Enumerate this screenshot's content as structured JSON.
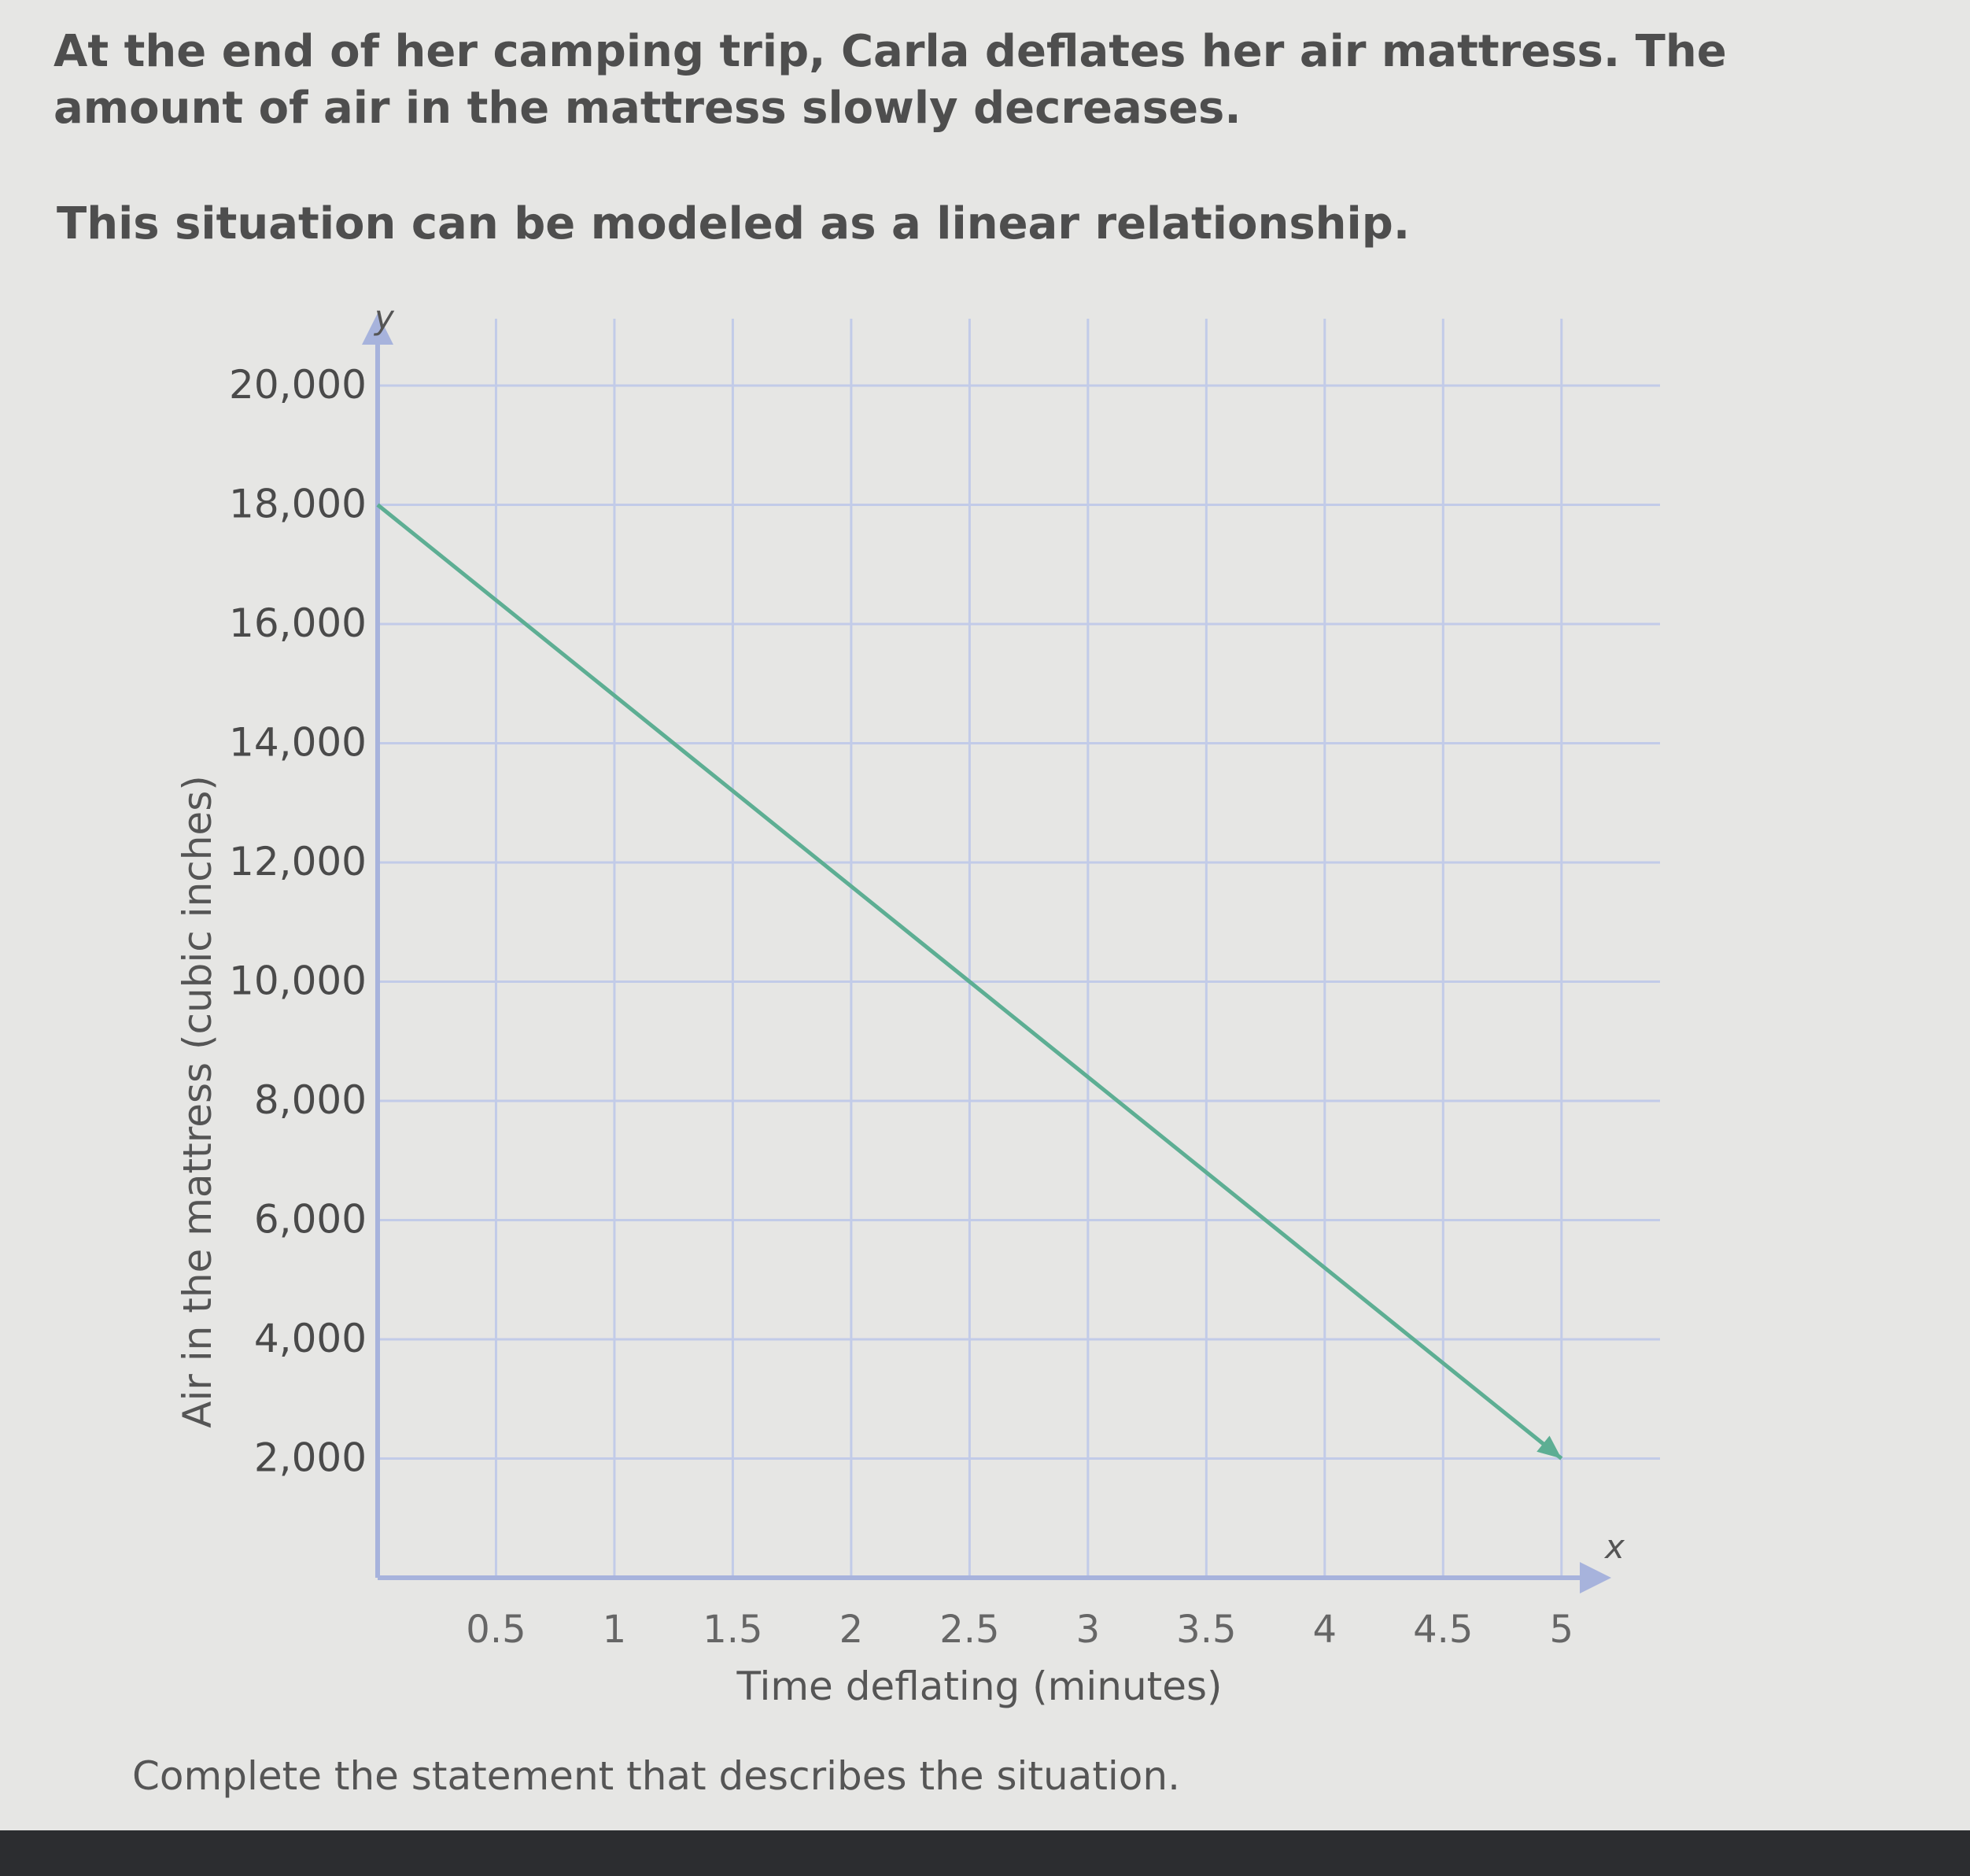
{
  "problem": {
    "text": "At the end of her camping trip, Carla deflates her air mattress. The amount of air in the mattress slowly decreases.",
    "model_statement": "This situation can be modeled as a linear relationship."
  },
  "prompt": "Complete the statement that describes the situation.",
  "colors": {
    "line": "#5dae93",
    "axis": "#a7b3dc",
    "grid": "#c2cbe8",
    "text": "#4a4a4a"
  },
  "chart_data": {
    "type": "line",
    "title": "",
    "xlabel": "Time deflating (minutes)",
    "ylabel": "Air in the mattress (cubic inches)",
    "x_axis_name": "x",
    "y_axis_name": "y",
    "xlim": [
      0,
      5.25
    ],
    "ylim": [
      0,
      20000
    ],
    "x_ticks": [
      0.5,
      1,
      1.5,
      2,
      2.5,
      3,
      3.5,
      4,
      4.5,
      5
    ],
    "x_tick_labels": [
      "0.5",
      "1",
      "1.5",
      "2",
      "2.5",
      "3",
      "3.5",
      "4",
      "4.5",
      "5"
    ],
    "y_ticks": [
      2000,
      4000,
      6000,
      8000,
      10000,
      12000,
      14000,
      16000,
      18000,
      20000
    ],
    "y_tick_labels": [
      "2,000",
      "4,000",
      "6,000",
      "8,000",
      "10,000",
      "12,000",
      "14,000",
      "16,000",
      "18,000",
      "20,000"
    ],
    "grid": true,
    "series": [
      {
        "x": [
          0,
          2.5,
          5
        ],
        "y": [
          18000,
          10000,
          2000
        ],
        "arrow_end": true
      }
    ]
  }
}
